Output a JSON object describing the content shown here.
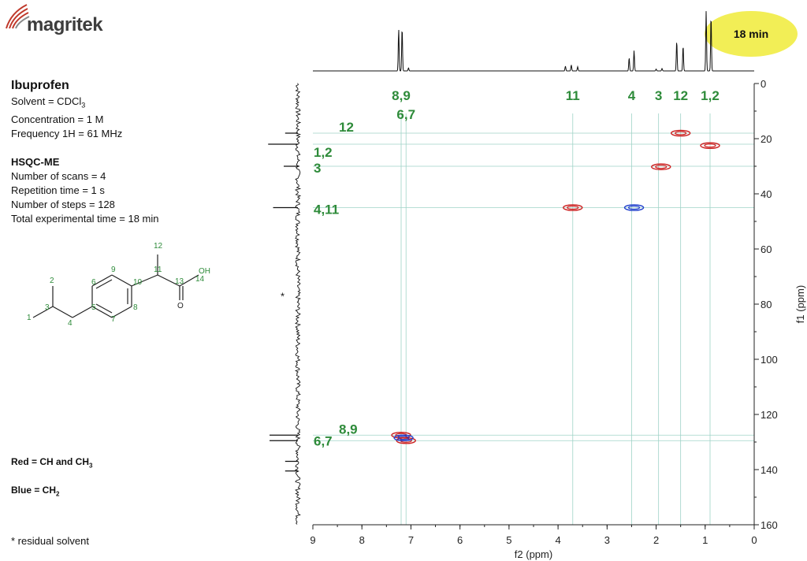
{
  "brand": {
    "name": "magritek",
    "accent": "#c0392b"
  },
  "badge": {
    "text": "18 min",
    "color": "#f2ee56"
  },
  "info": {
    "compound": "Ibuprofen",
    "solvent_prefix": "Solvent = CDCl",
    "solvent_sub": "3",
    "concentration": "Concentration = 1 M",
    "frequency": "Frequency 1H = 61 MHz",
    "experiment": "HSQC-ME",
    "scans": "Number of scans = 4",
    "repetition": "Repetition time = 1 s",
    "steps": "Number of steps = 128",
    "total_time": "Total experimental time = 18 min"
  },
  "legend": {
    "red_prefix": "Red = CH and CH",
    "red_sub": "3",
    "blue_prefix": "Blue = CH",
    "blue_sub": "2",
    "red_color": "#cc1f1f",
    "blue_color": "#1f3fcc"
  },
  "footnote": "* residual solvent",
  "structure": {
    "atom_labels": [
      "1",
      "2",
      "3",
      "4",
      "5",
      "6",
      "7",
      "8",
      "9",
      "10",
      "11",
      "12",
      "13",
      "14"
    ],
    "oh": "OH",
    "o": "O",
    "label_color": "#2e8b3a"
  },
  "chart_data": {
    "type": "scatter",
    "title": "",
    "xlabel": "f2 (ppm)",
    "ylabel": "f1 (ppm)",
    "xlim": [
      9,
      0
    ],
    "ylim": [
      0,
      160
    ],
    "xticks": [
      "9",
      "8",
      "7",
      "6",
      "5",
      "4",
      "3",
      "2",
      "1",
      "0"
    ],
    "yticks": [
      "0",
      "20",
      "40",
      "60",
      "80",
      "100",
      "120",
      "140",
      "160"
    ],
    "grid": false,
    "series": [
      {
        "name": "Red = CH and CH3",
        "color": "#cc1f1f",
        "points": [
          {
            "x": 7.2,
            "y": 127.5
          },
          {
            "x": 7.1,
            "y": 129.5
          },
          {
            "x": 3.7,
            "y": 45
          },
          {
            "x": 1.9,
            "y": 30.2
          },
          {
            "x": 1.5,
            "y": 18
          },
          {
            "x": 0.9,
            "y": 22.5
          }
        ]
      },
      {
        "name": "Blue = CH2",
        "color": "#1f3fcc",
        "points": [
          {
            "x": 2.45,
            "y": 45
          },
          {
            "x": 7.15,
            "y": 128.5
          }
        ]
      }
    ],
    "top_peak_labels": [
      {
        "text": "8,9",
        "x": 7.2
      },
      {
        "text": "6,7",
        "x": 7.1
      },
      {
        "text": "11",
        "x": 3.7
      },
      {
        "text": "4",
        "x": 2.5
      },
      {
        "text": "3",
        "x": 1.95
      },
      {
        "text": "12",
        "x": 1.5
      },
      {
        "text": "1,2",
        "x": 0.9
      }
    ],
    "side_peak_labels": [
      {
        "text": "12",
        "y": 18
      },
      {
        "text": "1,2",
        "y": 22
      },
      {
        "text": "3",
        "y": 30
      },
      {
        "text": "4,11",
        "y": 45
      },
      {
        "text": "8,9",
        "y": 127.5
      },
      {
        "text": "6,7",
        "y": 129.5
      }
    ],
    "proton_peaks": [
      {
        "x": 7.25,
        "h": 0.7
      },
      {
        "x": 7.18,
        "h": 0.72
      },
      {
        "x": 7.05,
        "h": 0.05
      },
      {
        "x": 3.85,
        "h": 0.08
      },
      {
        "x": 3.73,
        "h": 0.1
      },
      {
        "x": 3.6,
        "h": 0.07
      },
      {
        "x": 2.55,
        "h": 0.22
      },
      {
        "x": 2.45,
        "h": 0.34
      },
      {
        "x": 2.0,
        "h": 0.03
      },
      {
        "x": 1.88,
        "h": 0.04
      },
      {
        "x": 1.58,
        "h": 0.5
      },
      {
        "x": 1.45,
        "h": 0.42
      },
      {
        "x": 0.98,
        "h": 1.0
      },
      {
        "x": 0.88,
        "h": 0.92
      }
    ],
    "carbon_peaks": [
      {
        "y": 18,
        "w": 0.18
      },
      {
        "y": 22,
        "w": 0.42
      },
      {
        "y": 30,
        "w": 0.2
      },
      {
        "y": 45,
        "w": 0.35
      },
      {
        "y": 127.5,
        "w": 0.4
      },
      {
        "y": 129.5,
        "w": 0.4
      },
      {
        "y": 137,
        "w": 0.18
      },
      {
        "y": 140.5,
        "w": 0.18
      }
    ],
    "annotations": [
      {
        "text": "*",
        "y": 77
      }
    ],
    "label_color": "#2e8b3a",
    "guide_color": "#9fd3c7"
  }
}
